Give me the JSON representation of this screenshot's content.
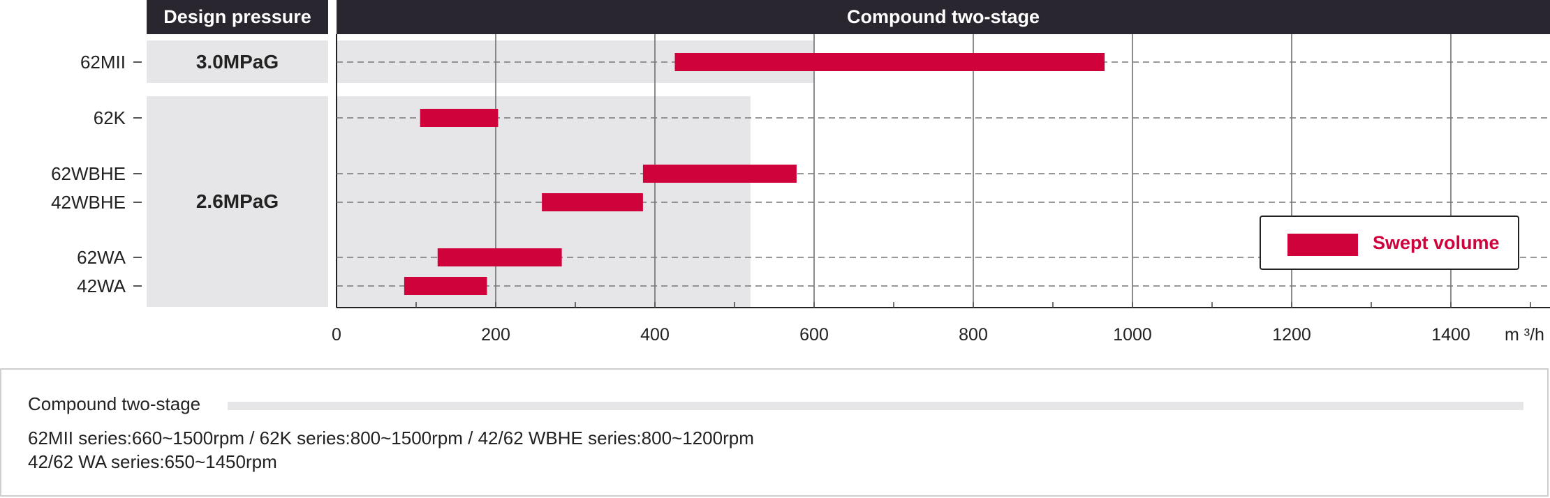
{
  "header": {
    "left_label": "Design pressure",
    "right_label": "Compound two-stage"
  },
  "pressure_groups": [
    {
      "label": "3.0MPaG",
      "rows": [
        "62MII"
      ],
      "range_max": 600
    },
    {
      "label": "2.6MPaG",
      "rows": [
        "62K",
        "62WBHE",
        "42WBHE",
        "62WA",
        "42WA"
      ],
      "range_max": 520
    }
  ],
  "legend": {
    "label": "Swept volume",
    "placement": "right",
    "color": "#d0023c"
  },
  "chart_data": {
    "type": "bar",
    "orientation": "horizontal-range",
    "categories": [
      "62MII",
      "62K",
      "62WBHE",
      "42WBHE",
      "62WA",
      "42WA"
    ],
    "series": [
      {
        "name": "Swept volume",
        "ranges": [
          [
            425,
            965
          ],
          [
            105,
            203
          ],
          [
            385,
            578
          ],
          [
            258,
            385
          ],
          [
            127,
            283
          ],
          [
            85,
            189
          ]
        ]
      }
    ],
    "xlim": [
      0,
      1500
    ],
    "xticks": [
      "0",
      "200",
      "400",
      "600",
      "800",
      "1000",
      "1200",
      "1400"
    ],
    "xunit": "m ³/h",
    "grid": true,
    "colors": {
      "bar": "#d0023c",
      "shade": "#e6e6e8",
      "header": "#2a2630"
    }
  },
  "footer": {
    "title": "Compound two-stage",
    "line1": "62MII series:660~1500rpm / 62K series:800~1500rpm / 42/62 WBHE series:800~1200rpm",
    "line2": "42/62 WA series:650~1450rpm"
  }
}
